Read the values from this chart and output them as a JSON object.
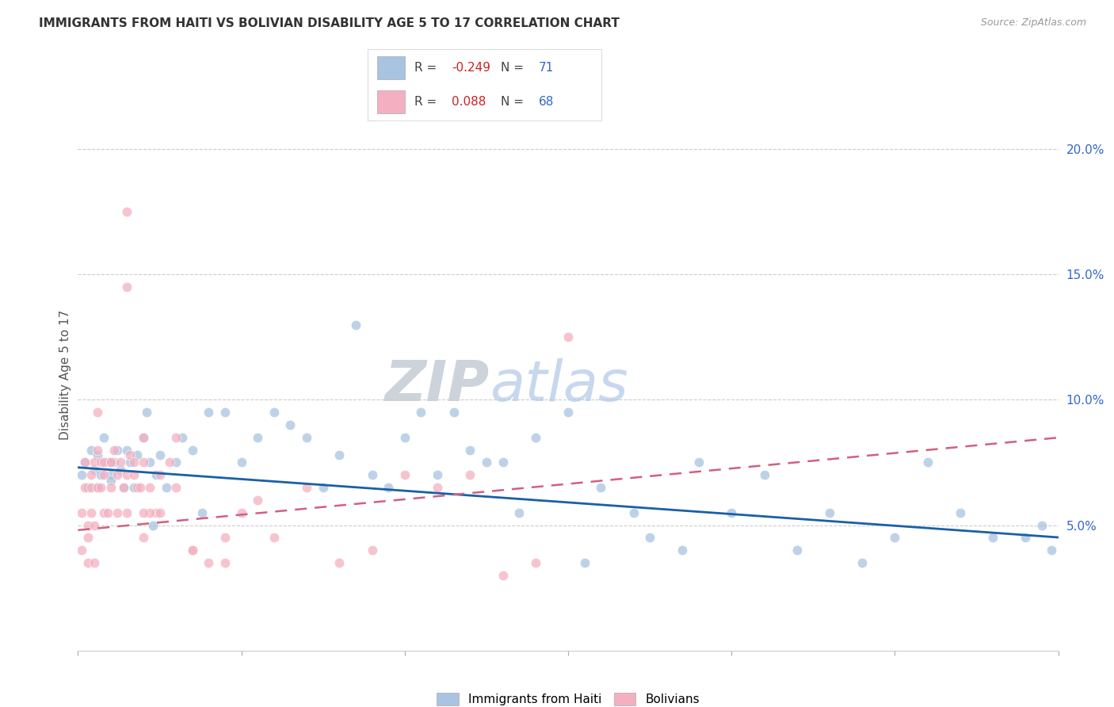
{
  "title": "IMMIGRANTS FROM HAITI VS BOLIVIAN DISABILITY AGE 5 TO 17 CORRELATION CHART",
  "source": "Source: ZipAtlas.com",
  "ylabel": "Disability Age 5 to 17",
  "ytick_values": [
    5.0,
    10.0,
    15.0,
    20.0
  ],
  "xlim": [
    0.0,
    30.0
  ],
  "ylim": [
    0.0,
    22.0
  ],
  "legend_haiti_R": "-0.249",
  "legend_haiti_N": "71",
  "legend_bolivia_R": "0.088",
  "legend_bolivia_N": "68",
  "haiti_color": "#a8c4e0",
  "bolivia_color": "#f4b0c0",
  "haiti_line_color": "#1a5fa8",
  "bolivia_line_color": "#d06080",
  "watermark_zip": "ZIP",
  "watermark_atlas": "atlas",
  "haiti_scatter_x": [
    0.1,
    0.2,
    0.3,
    0.4,
    0.5,
    0.6,
    0.6,
    0.7,
    0.8,
    0.9,
    1.0,
    1.0,
    1.1,
    1.2,
    1.3,
    1.4,
    1.5,
    1.6,
    1.7,
    1.8,
    2.0,
    2.1,
    2.2,
    2.4,
    2.5,
    2.7,
    3.0,
    3.2,
    3.5,
    4.0,
    4.5,
    5.0,
    5.5,
    6.0,
    6.5,
    7.0,
    7.5,
    8.0,
    9.0,
    9.5,
    10.0,
    10.5,
    11.0,
    11.5,
    12.0,
    12.5,
    13.0,
    13.5,
    14.0,
    15.0,
    15.5,
    16.0,
    17.0,
    17.5,
    18.5,
    19.0,
    20.0,
    21.0,
    22.0,
    23.0,
    24.0,
    25.0,
    26.0,
    27.0,
    28.0,
    29.0,
    29.5,
    29.8,
    2.3,
    3.8,
    8.5
  ],
  "haiti_scatter_y": [
    7.0,
    7.5,
    6.5,
    8.0,
    7.2,
    7.8,
    6.5,
    7.0,
    8.5,
    7.5,
    7.0,
    6.8,
    7.5,
    8.0,
    7.2,
    6.5,
    8.0,
    7.5,
    6.5,
    7.8,
    8.5,
    9.5,
    7.5,
    7.0,
    7.8,
    6.5,
    7.5,
    8.5,
    8.0,
    9.5,
    9.5,
    7.5,
    8.5,
    9.5,
    9.0,
    8.5,
    6.5,
    7.8,
    7.0,
    6.5,
    8.5,
    9.5,
    7.0,
    9.5,
    8.0,
    7.5,
    7.5,
    5.5,
    8.5,
    9.5,
    3.5,
    6.5,
    5.5,
    4.5,
    4.0,
    7.5,
    5.5,
    7.0,
    4.0,
    5.5,
    3.5,
    4.5,
    7.5,
    5.5,
    4.5,
    4.5,
    5.0,
    4.0,
    5.0,
    5.5,
    13.0
  ],
  "bolivia_scatter_x": [
    0.1,
    0.1,
    0.2,
    0.2,
    0.3,
    0.3,
    0.4,
    0.4,
    0.5,
    0.5,
    0.6,
    0.6,
    0.7,
    0.7,
    0.8,
    0.8,
    0.9,
    1.0,
    1.0,
    1.1,
    1.2,
    1.2,
    1.3,
    1.4,
    1.5,
    1.5,
    1.6,
    1.7,
    1.8,
    1.9,
    2.0,
    2.0,
    2.2,
    2.4,
    2.5,
    2.8,
    3.0,
    3.5,
    4.0,
    4.5,
    5.0,
    5.5,
    6.0,
    7.0,
    8.0,
    9.0,
    10.0,
    11.0,
    12.0,
    13.0,
    14.0,
    15.0,
    0.3,
    0.5,
    0.8,
    1.0,
    1.5,
    2.0,
    2.5,
    3.0,
    3.5,
    0.6,
    0.4,
    2.2,
    1.7,
    4.5,
    2.0,
    1.5
  ],
  "bolivia_scatter_y": [
    5.5,
    4.0,
    6.5,
    7.5,
    5.0,
    4.5,
    6.5,
    5.5,
    5.0,
    7.5,
    6.5,
    8.0,
    6.5,
    7.5,
    7.5,
    5.5,
    5.5,
    6.5,
    7.5,
    8.0,
    7.0,
    5.5,
    7.5,
    6.5,
    7.0,
    5.5,
    7.8,
    7.5,
    6.5,
    6.5,
    4.5,
    7.5,
    6.5,
    5.5,
    7.0,
    7.5,
    6.5,
    4.0,
    3.5,
    3.5,
    5.5,
    6.0,
    4.5,
    6.5,
    3.5,
    4.0,
    7.0,
    6.5,
    7.0,
    3.0,
    3.5,
    12.5,
    3.5,
    3.5,
    7.0,
    7.5,
    14.5,
    8.5,
    5.5,
    8.5,
    4.0,
    9.5,
    7.0,
    5.5,
    7.0,
    4.5,
    5.5,
    17.5
  ]
}
